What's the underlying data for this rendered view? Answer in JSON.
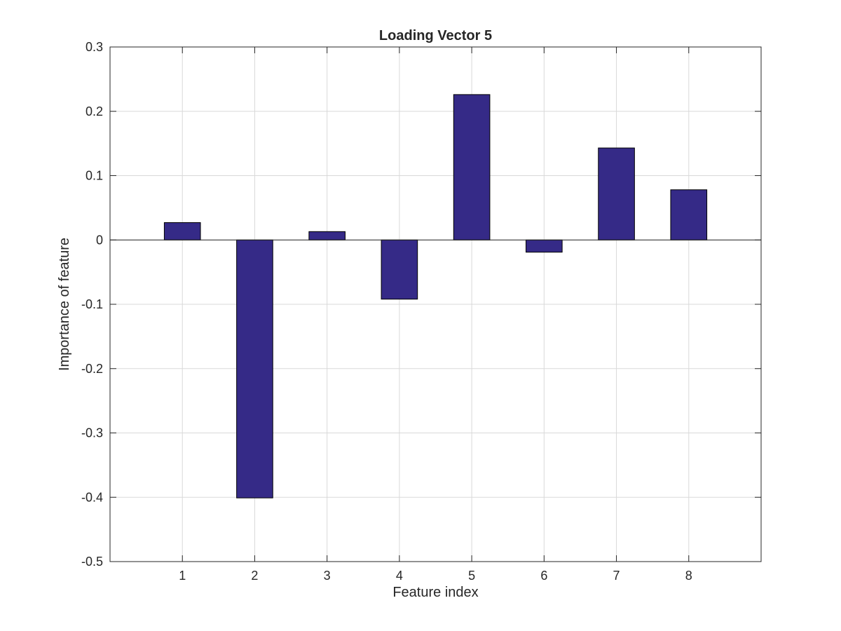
{
  "chart_data": {
    "type": "bar",
    "title": "Loading Vector 5",
    "xlabel": "Feature index",
    "ylabel": "Importance of feature",
    "categories": [
      "1",
      "2",
      "3",
      "4",
      "5",
      "6",
      "7",
      "8"
    ],
    "values": [
      0.027,
      -0.401,
      0.013,
      -0.092,
      0.226,
      -0.019,
      0.143,
      0.078
    ],
    "xlim": [
      0,
      9
    ],
    "ylim": [
      -0.5,
      0.3
    ],
    "yticks": [
      -0.5,
      -0.4,
      -0.3,
      -0.2,
      -0.1,
      0,
      0.1,
      0.2,
      0.3
    ],
    "ytick_labels": [
      "-0.5",
      "-0.4",
      "-0.3",
      "-0.2",
      "-0.1",
      "0",
      "0.1",
      "0.2",
      "0.3"
    ],
    "grid": true,
    "legend": "none",
    "bar_color": "#352a87",
    "bar_edge_color": "#000000"
  }
}
